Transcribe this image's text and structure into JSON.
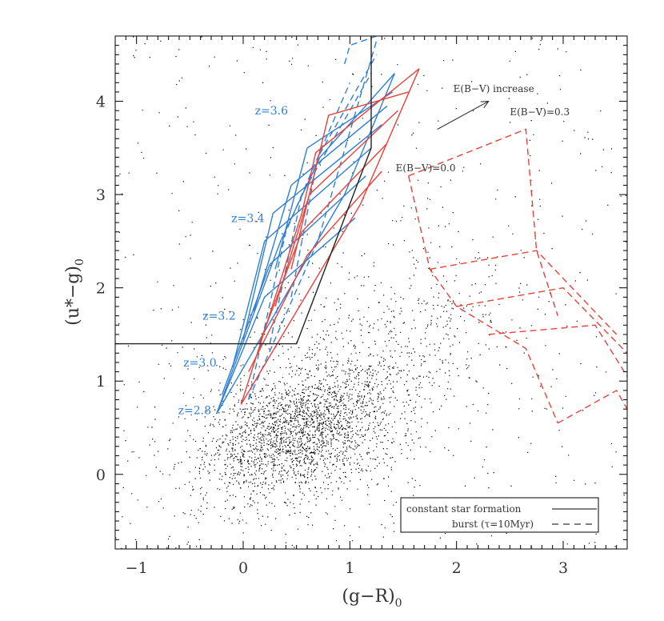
{
  "chart_data": {
    "type": "scatter",
    "xlabel": "(g−R)",
    "xlabel_sub": "0",
    "ylabel": "(u*−g)",
    "ylabel_sub": "0",
    "xlim": [
      -1.2,
      3.6
    ],
    "ylim": [
      -0.8,
      4.7
    ],
    "x_ticks": [
      -1,
      0,
      1,
      2,
      3
    ],
    "y_ticks": [
      0,
      1,
      2,
      3,
      4
    ],
    "grid": false,
    "legend_position": "bottom-right",
    "legend": [
      {
        "label": "constant star formation",
        "style": "solid"
      },
      {
        "label": "burst (τ=10Myr)",
        "style": "dashed"
      }
    ],
    "annotations": {
      "ebv_increase": "E(B−V) increase",
      "ebv_03": "E(B−V)=0.3",
      "ebv_00": "E(B−V)=0.0"
    },
    "arrow": {
      "from": [
        1.82,
        3.7
      ],
      "to": [
        2.3,
        4.0
      ]
    },
    "redshift_labels": [
      {
        "text": "z=3.6",
        "x": 0.42,
        "y": 3.9
      },
      {
        "text": "z=3.4",
        "x": 0.2,
        "y": 2.75
      },
      {
        "text": "z=3.2",
        "x": -0.07,
        "y": 1.7
      },
      {
        "text": "z=3.0",
        "x": -0.25,
        "y": 1.2
      },
      {
        "text": "z=2.8",
        "x": -0.3,
        "y": 0.69
      }
    ],
    "selection_boundary": {
      "x": [
        -1.2,
        0.5,
        1.2,
        1.2
      ],
      "y": [
        1.4,
        1.4,
        3.5,
        4.7
      ]
    },
    "series": [
      {
        "group": "blue_constant",
        "x": [
          -0.25,
          0.35,
          0.72,
          1.42
        ],
        "y": [
          0.65,
          2.5,
          3.4,
          4.3
        ]
      },
      {
        "group": "blue_constant",
        "x": [
          -0.25,
          0.95,
          1.42
        ],
        "y": [
          0.65,
          3.0,
          4.3
        ]
      },
      {
        "group": "blue_constant",
        "x": [
          -0.25,
          0.2,
          1.05
        ],
        "y": [
          0.65,
          1.9,
          2.75
        ]
      },
      {
        "group": "blue_constant",
        "x": [
          -0.2,
          0.25,
          1.15
        ],
        "y": [
          0.85,
          2.25,
          3.2
        ]
      },
      {
        "group": "blue_constant",
        "x": [
          -0.1,
          0.2,
          1.2
        ],
        "y": [
          1.15,
          2.5,
          3.5
        ]
      },
      {
        "group": "blue_constant",
        "x": [
          0.0,
          0.28,
          1.3
        ],
        "y": [
          1.45,
          2.8,
          3.75
        ]
      },
      {
        "group": "blue_constant",
        "x": [
          0.1,
          0.45,
          1.35
        ],
        "y": [
          1.75,
          3.1,
          3.95
        ]
      },
      {
        "group": "blue_constant",
        "x": [
          0.3,
          0.6,
          1.4
        ],
        "y": [
          2.2,
          3.5,
          4.1
        ]
      },
      {
        "group": "blue_burst",
        "x": [
          0.05,
          0.7,
          1.25
        ],
        "y": [
          0.8,
          2.5,
          4.65
        ]
      },
      {
        "group": "blue_burst",
        "x": [
          0.05,
          0.4,
          1.0
        ],
        "y": [
          0.8,
          2.6,
          4.2
        ]
      },
      {
        "group": "blue_burst",
        "x": [
          0.25,
          0.55,
          1.2
        ],
        "y": [
          1.4,
          3.0,
          4.3
        ]
      },
      {
        "group": "blue_burst",
        "x": [
          0.45,
          0.7,
          1.25
        ],
        "y": [
          1.9,
          3.4,
          4.5
        ]
      },
      {
        "group": "blue_burst",
        "x": [
          0.95,
          1.0,
          1.25
        ],
        "y": [
          4.4,
          4.6,
          4.7
        ]
      },
      {
        "group": "red_constant",
        "x": [
          -0.02,
          0.55,
          0.68,
          1.65
        ],
        "y": [
          0.75,
          2.8,
          3.45,
          4.35
        ]
      },
      {
        "group": "red_constant",
        "x": [
          -0.02,
          1.1,
          1.65
        ],
        "y": [
          0.75,
          2.9,
          4.35
        ]
      },
      {
        "group": "red_constant",
        "x": [
          0.05,
          0.6,
          1.3
        ],
        "y": [
          1.1,
          2.35,
          3.25
        ]
      },
      {
        "group": "red_constant",
        "x": [
          0.15,
          0.55,
          1.35
        ],
        "y": [
          1.4,
          2.6,
          3.55
        ]
      },
      {
        "group": "red_constant",
        "x": [
          0.3,
          0.62,
          1.45
        ],
        "y": [
          1.8,
          3.0,
          3.9
        ]
      },
      {
        "group": "red_constant",
        "x": [
          0.45,
          0.8,
          1.55
        ],
        "y": [
          2.2,
          3.85,
          4.1
        ]
      },
      {
        "group": "red_burst",
        "x": [
          1.55,
          1.75,
          2.0,
          2.65,
          2.95
        ],
        "y": [
          3.2,
          2.2,
          1.8,
          1.35,
          0.55
        ]
      },
      {
        "group": "red_burst",
        "x": [
          1.55,
          2.65,
          2.75,
          2.95
        ],
        "y": [
          3.2,
          3.7,
          2.4,
          1.7
        ]
      },
      {
        "group": "red_burst",
        "x": [
          1.75,
          2.75,
          3.5
        ],
        "y": [
          2.2,
          2.4,
          1.5
        ]
      },
      {
        "group": "red_burst",
        "x": [
          2.0,
          3.0,
          3.6
        ],
        "y": [
          1.8,
          2.0,
          1.3
        ]
      },
      {
        "group": "red_burst",
        "x": [
          2.3,
          3.3,
          3.6
        ],
        "y": [
          1.5,
          1.6,
          1.05
        ]
      },
      {
        "group": "red_burst",
        "x": [
          2.95,
          3.5,
          3.6
        ],
        "y": [
          0.55,
          0.9,
          0.7
        ]
      }
    ],
    "scatter_cloud": {
      "center_x": 0.55,
      "center_y": 0.45,
      "approx_points": 9000
    }
  },
  "colors": {
    "blue": "#2f7fd6",
    "red": "#e8413a",
    "black": "#222222",
    "points": "#000000"
  }
}
